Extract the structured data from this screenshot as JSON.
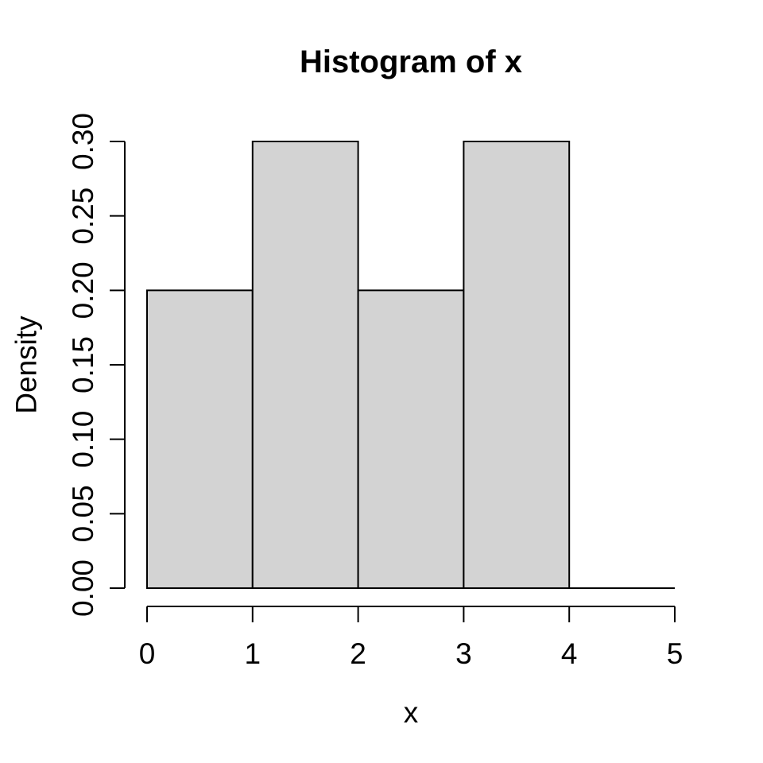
{
  "figure": {
    "background": "#ffffff"
  },
  "chart_data": {
    "type": "bar",
    "subtype": "histogram",
    "title": "Histogram of x",
    "xlabel": "x",
    "ylabel": "Density",
    "bin_edges": [
      0,
      1,
      2,
      3,
      4,
      5
    ],
    "densities": [
      0.2,
      0.3,
      0.2,
      0.3,
      0.0
    ],
    "x_tick_labels": [
      "0",
      "1",
      "2",
      "3",
      "4",
      "5"
    ],
    "x_tick_values": [
      0,
      1,
      2,
      3,
      4,
      5
    ],
    "y_tick_labels": [
      "0.00",
      "0.05",
      "0.10",
      "0.15",
      "0.20",
      "0.25",
      "0.30"
    ],
    "y_tick_values": [
      0,
      0.05,
      0.1,
      0.15,
      0.2,
      0.25,
      0.3
    ],
    "xlim": [
      0,
      5
    ],
    "ylim": [
      0,
      0.3
    ],
    "grid": false,
    "bar_fill": "#d3d3d3",
    "bar_stroke": "#000000",
    "axis_color": "#000000",
    "text_color": "#000000"
  }
}
